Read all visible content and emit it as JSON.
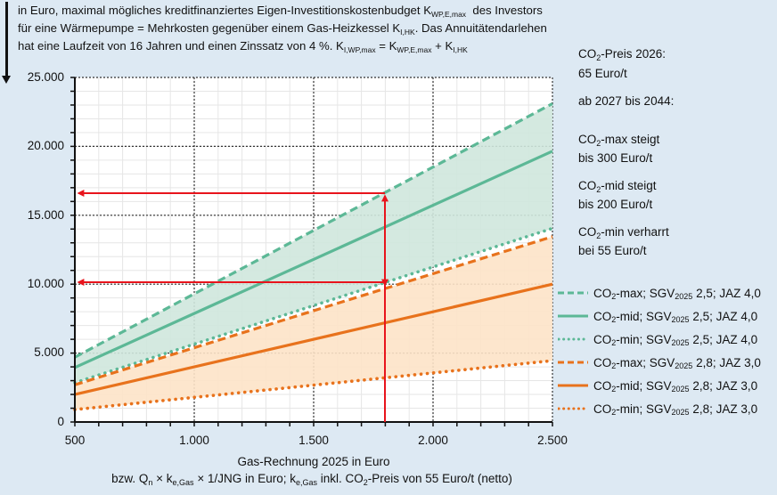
{
  "description": {
    "line1_a": "in Euro, maximal mögliches kreditfinanziertes Eigen-Investitionskostenbudget K",
    "line1_sub": "WP,E,max",
    "line1_b": "des Investors",
    "line2_a": "für eine Wärmepumpe = Mehrkosten gegenüber einem Gas-Heizkessel K",
    "line2_sub": "I,HK",
    "line2_b": ". Das  Annuitätendarlehen",
    "line3_a": "hat eine Laufzeit von 16 Jahren und einen Zinssatz von 4 %.  K",
    "line3_sub1": "I,WP,max",
    "line3_b": " = K",
    "line3_sub2": "WP,E,max",
    "line3_c": " + K",
    "line3_sub3": "I,HK"
  },
  "notes": {
    "co2_2026_a": "CO",
    "co2_2026_b": "-Preis 2026:",
    "co2_2026_value": "65 Euro/t",
    "period": "ab 2027 bis 2044:",
    "max_a": "CO",
    "max_b": "-max steigt",
    "max_value": "bis 300 Euro/t",
    "mid_a": "CO",
    "mid_b": "-mid steigt",
    "mid_value": "bis 200 Euro/t",
    "min_a": "CO",
    "min_b": "-min verharrt",
    "min_value": "bei 55 Euro/t",
    "sub2": "2"
  },
  "axes": {
    "y_ticks": [
      "25.000",
      "20.000",
      "15.000",
      "10.000",
      "5.000",
      "0"
    ],
    "x_ticks": [
      "500",
      "1.000",
      "1.500",
      "2.000",
      "2.500"
    ],
    "xlabel": "Gas-Rechnung  2025 in Euro",
    "xlabel2_a": "bzw. Q",
    "xlabel2_sub1": "n",
    "xlabel2_b": " × k",
    "xlabel2_sub2": "e,Gas",
    "xlabel2_c": " × 1/JNG  in Euro;    k",
    "xlabel2_sub3": "e,Gas",
    "xlabel2_d": " inkl. CO",
    "xlabel2_sub4": "2",
    "xlabel2_e": "-Preis von 55 Euro/t (netto)"
  },
  "legend": [
    {
      "pre": "CO",
      "sub": "2",
      "mid": "-max; SGV",
      "sub2": "2025",
      "post": " 2,5; JAZ 4,0"
    },
    {
      "pre": "CO",
      "sub": "2",
      "mid": "-mid; SGV",
      "sub2": "2025",
      "post": " 2,5; JAZ 4,0"
    },
    {
      "pre": "CO",
      "sub": "2",
      "mid": "-min; SGV",
      "sub2": "2025",
      "post": " 2,5; JAZ 4,0"
    },
    {
      "pre": "CO",
      "sub": "2",
      "mid": "-max; SGV",
      "sub2": "2025",
      "post": " 2,8; JAZ 3,0"
    },
    {
      "pre": "CO",
      "sub": "2",
      "mid": "-mid; SGV",
      "sub2": "2025",
      "post": " 2,8; JAZ 3,0"
    },
    {
      "pre": "CO",
      "sub": "2",
      "mid": "-min; SGV",
      "sub2": "2025",
      "post": " 2,8; JAZ 3,0"
    }
  ],
  "colors": {
    "green": "#5cb896",
    "green_fill": "#cfe7dd",
    "orange": "#e8721c",
    "orange_fill": "#fde3c8",
    "red": "#e8141c",
    "background": "#dde9f3"
  },
  "chart_data": {
    "type": "line",
    "title": "in Euro, maximal mögliches kreditfinanziertes Eigen-Investitionskostenbudget K_WP,E,max des Investors für eine Wärmepumpe",
    "xlabel": "Gas-Rechnung 2025 in Euro",
    "ylabel": "",
    "x": [
      500,
      2500
    ],
    "xlim": [
      500,
      2500
    ],
    "ylim": [
      0,
      25000
    ],
    "grid": true,
    "legend_position": "right",
    "series": [
      {
        "name": "CO2-max; SGV2025 2,5; JAZ 4,0",
        "color": "#5cb896",
        "style": "dashed",
        "values": [
          4700,
          23100
        ]
      },
      {
        "name": "CO2-mid; SGV2025 2,5; JAZ 4,0",
        "color": "#5cb896",
        "style": "solid",
        "values": [
          3950,
          19650
        ]
      },
      {
        "name": "CO2-min; SGV2025 2,5; JAZ 4,0",
        "color": "#5cb896",
        "style": "dotted",
        "values": [
          2850,
          14050
        ]
      },
      {
        "name": "CO2-max; SGV2025 2,8; JAZ 3,0",
        "color": "#e8721c",
        "style": "dashed",
        "values": [
          2700,
          13450
        ]
      },
      {
        "name": "CO2-mid; SGV2025 2,8; JAZ 3,0",
        "color": "#e8721c",
        "style": "solid",
        "values": [
          2000,
          10000
        ]
      },
      {
        "name": "CO2-min; SGV2025 2,8; JAZ 3,0",
        "color": "#e8721c",
        "style": "dotted",
        "values": [
          900,
          4450
        ]
      }
    ],
    "annotations": [
      {
        "type": "arrow",
        "x": 1800,
        "y_from": 0,
        "y_to": 16600,
        "color": "#e8141c"
      },
      {
        "type": "arrow",
        "from": [
          1800,
          16600
        ],
        "to": [
          500,
          16600
        ],
        "color": "#e8141c"
      },
      {
        "type": "arrow",
        "from": [
          1800,
          10100
        ],
        "to": [
          500,
          10100
        ],
        "color": "#e8141c"
      }
    ]
  }
}
